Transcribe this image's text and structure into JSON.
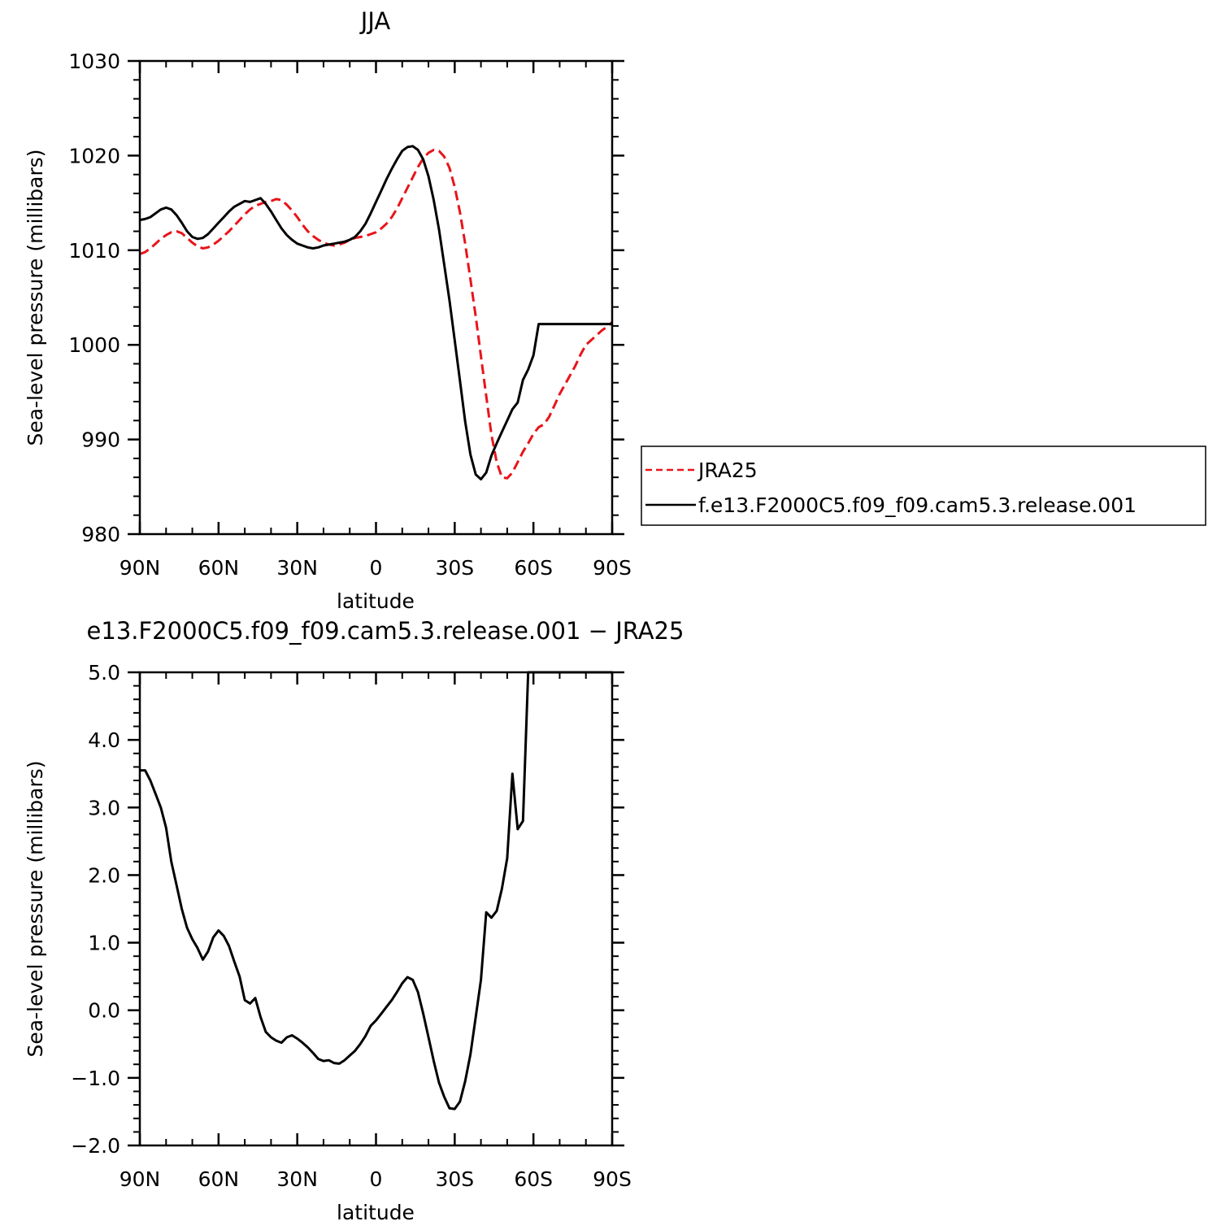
{
  "colors": {
    "jra": "#e8141a",
    "model": "#000000",
    "frame": "#000000"
  },
  "chart_data": [
    {
      "type": "line",
      "title": "JJA",
      "xlabel": "latitude",
      "ylabel": "Sea-level pressure (millibars)",
      "xlim": [
        90,
        -90
      ],
      "ylim": [
        980,
        1030
      ],
      "xticks": [
        90,
        60,
        30,
        0,
        -30,
        -60,
        -90
      ],
      "xtick_labels": [
        "90N",
        "60N",
        "30N",
        "0",
        "30S",
        "60S",
        "90S"
      ],
      "yticks": [
        980,
        990,
        1000,
        1010,
        1020,
        1030
      ],
      "ytick_labels": [
        "980",
        "990",
        "1000",
        "1010",
        "1020",
        "1030"
      ],
      "grid": false,
      "legend_position": "right",
      "legend": {
        "entries": [
          "JRA25",
          "f.e13.F2000C5.f09_f09.cam5.3.release.001"
        ]
      },
      "series": [
        {
          "name": "JRA25",
          "style": "dashed",
          "color": "#e8141a",
          "x": [
            90,
            88,
            86,
            84,
            82,
            80,
            78,
            76,
            74,
            72,
            70,
            68,
            66,
            64,
            62,
            60,
            58,
            56,
            54,
            52,
            50,
            48,
            46,
            44,
            42,
            40,
            38,
            36,
            34,
            32,
            30,
            28,
            26,
            24,
            22,
            20,
            18,
            16,
            14,
            12,
            10,
            8,
            6,
            4,
            2,
            0,
            -2,
            -4,
            -6,
            -8,
            -10,
            -12,
            -14,
            -16,
            -18,
            -20,
            -22,
            -24,
            -26,
            -28,
            -30,
            -32,
            -34,
            -36,
            -38,
            -40,
            -42,
            -44,
            -46,
            -48,
            -50,
            -52,
            -54,
            -56,
            -58,
            -60,
            -62,
            -64,
            -66,
            -68,
            -70,
            -72,
            -74,
            -76,
            -78,
            -80,
            -82,
            -84,
            -86,
            -88,
            -90
          ],
          "y": [
            1009.6,
            1009.8,
            1010.2,
            1010.7,
            1011.2,
            1011.6,
            1011.9,
            1012.0,
            1011.8,
            1011.3,
            1010.8,
            1010.4,
            1010.2,
            1010.3,
            1010.6,
            1011.0,
            1011.5,
            1012.0,
            1012.6,
            1013.2,
            1013.8,
            1014.3,
            1014.7,
            1014.9,
            1015.1,
            1015.2,
            1015.4,
            1015.3,
            1014.8,
            1014.2,
            1013.5,
            1012.7,
            1012.0,
            1011.5,
            1011.1,
            1010.8,
            1010.6,
            1010.5,
            1010.6,
            1010.8,
            1011.1,
            1011.3,
            1011.4,
            1011.5,
            1011.7,
            1011.9,
            1012.3,
            1012.8,
            1013.5,
            1014.4,
            1015.5,
            1016.6,
            1017.7,
            1018.8,
            1019.7,
            1020.3,
            1020.6,
            1020.5,
            1019.9,
            1018.7,
            1016.7,
            1014.0,
            1010.7,
            1006.9,
            1003.0,
            998.8,
            994.6,
            990.5,
            987.6,
            986.0,
            985.9,
            986.5,
            987.6,
            988.7,
            989.6,
            990.6,
            991.3,
            991.6,
            992.4,
            993.6,
            994.8,
            995.8,
            996.8,
            997.8,
            999.0,
            1000.0,
            1000.5,
            1001.0,
            1001.5,
            1001.9,
            1002.4
          ]
        },
        {
          "name": "f.e13.F2000C5.f09_f09.cam5.3.release.001",
          "style": "solid",
          "color": "#000000",
          "x": [
            90,
            88,
            86,
            84,
            82,
            80,
            78,
            76,
            74,
            72,
            70,
            68,
            66,
            64,
            62,
            60,
            58,
            56,
            54,
            52,
            50,
            48,
            46,
            44,
            42,
            40,
            38,
            36,
            34,
            32,
            30,
            28,
            26,
            24,
            22,
            20,
            18,
            16,
            14,
            12,
            10,
            8,
            6,
            4,
            2,
            0,
            -2,
            -4,
            -6,
            -8,
            -10,
            -12,
            -14,
            -16,
            -18,
            -20,
            -22,
            -24,
            -26,
            -28,
            -30,
            -32,
            -34,
            -36,
            -38,
            -40,
            -42,
            -44,
            -46,
            -48,
            -50,
            -52,
            -54,
            -56,
            -58,
            -60,
            -62,
            -64,
            -66,
            -68,
            -70,
            -72,
            -74,
            -76,
            -78,
            -80,
            -82,
            -84,
            -86,
            -88,
            -90
          ],
          "y": [
            1013.2,
            1013.3,
            1013.5,
            1013.9,
            1014.3,
            1014.5,
            1014.3,
            1013.7,
            1012.9,
            1012.0,
            1011.4,
            1011.2,
            1011.3,
            1011.7,
            1012.3,
            1012.9,
            1013.5,
            1014.1,
            1014.6,
            1014.9,
            1015.2,
            1015.1,
            1015.3,
            1015.5,
            1014.9,
            1014.1,
            1013.2,
            1012.3,
            1011.6,
            1011.1,
            1010.7,
            1010.5,
            1010.3,
            1010.2,
            1010.3,
            1010.5,
            1010.6,
            1010.7,
            1010.8,
            1010.9,
            1011.1,
            1011.4,
            1012.0,
            1012.8,
            1013.9,
            1015.1,
            1016.3,
            1017.5,
            1018.6,
            1019.6,
            1020.5,
            1020.9,
            1021.0,
            1020.6,
            1019.6,
            1017.8,
            1015.3,
            1012.2,
            1008.5,
            1004.7,
            1000.5,
            996.2,
            991.9,
            988.4,
            986.3,
            985.8,
            986.5,
            988.3,
            989.6,
            990.8,
            992.0,
            993.2,
            993.9,
            996.3,
            997.4,
            998.9,
            1002.2,
            1002.2,
            1002.2,
            1002.2,
            1002.2,
            1002.2,
            1002.2,
            1002.2,
            1002.2,
            1002.2,
            1002.2,
            1002.2,
            1002.2,
            1002.2,
            1002.2
          ]
        }
      ]
    },
    {
      "type": "line",
      "title": "e13.F2000C5.f09_f09.cam5.3.release.001 − JRA25",
      "xlabel": "latitude",
      "ylabel": "Sea-level pressure (millibars)",
      "xlim": [
        90,
        -90
      ],
      "ylim": [
        -2.0,
        5.0
      ],
      "xticks": [
        90,
        60,
        30,
        0,
        -30,
        -60,
        -90
      ],
      "xtick_labels": [
        "90N",
        "60N",
        "30N",
        "0",
        "30S",
        "60S",
        "90S"
      ],
      "yticks": [
        -2,
        -1,
        0,
        1,
        2,
        3,
        4,
        5
      ],
      "ytick_labels": [
        "−2.0",
        "−1.0",
        "0.0",
        "1.0",
        "2.0",
        "3.0",
        "4.0",
        "5.0"
      ],
      "grid": false,
      "series": [
        {
          "style": "solid",
          "color": "#000000",
          "x": [
            90,
            88,
            86,
            84,
            82,
            80,
            78,
            76,
            74,
            72,
            70,
            68,
            66,
            64,
            62,
            60,
            58,
            56,
            54,
            52,
            50,
            48,
            46,
            44,
            42,
            40,
            38,
            36,
            34,
            32,
            30,
            28,
            26,
            24,
            22,
            20,
            18,
            16,
            14,
            12,
            10,
            8,
            6,
            4,
            2,
            0,
            -2,
            -4,
            -6,
            -8,
            -10,
            -12,
            -14,
            -16,
            -18,
            -20,
            -22,
            -24,
            -26,
            -28,
            -30,
            -32,
            -34,
            -36,
            -38,
            -40,
            -42,
            -44,
            -46,
            -48,
            -50,
            -52,
            -54,
            -56,
            -58,
            -60,
            -62,
            -64,
            -66,
            -68,
            -70,
            -72,
            -74,
            -76,
            -78,
            -80,
            -82,
            -84,
            -86,
            -88,
            -90
          ],
          "y": [
            3.55,
            3.55,
            3.4,
            3.2,
            3.0,
            2.7,
            2.2,
            1.85,
            1.5,
            1.22,
            1.05,
            0.92,
            0.75,
            0.87,
            1.08,
            1.18,
            1.1,
            0.95,
            0.72,
            0.5,
            0.15,
            0.1,
            0.18,
            -0.1,
            -0.32,
            -0.4,
            -0.45,
            -0.48,
            -0.4,
            -0.37,
            -0.42,
            -0.48,
            -0.55,
            -0.63,
            -0.72,
            -0.75,
            -0.74,
            -0.78,
            -0.79,
            -0.74,
            -0.67,
            -0.6,
            -0.5,
            -0.38,
            -0.23,
            -0.15,
            -0.05,
            0.05,
            0.15,
            0.27,
            0.4,
            0.49,
            0.45,
            0.27,
            -0.05,
            -0.4,
            -0.75,
            -1.07,
            -1.28,
            -1.45,
            -1.46,
            -1.35,
            -1.05,
            -0.65,
            -0.1,
            0.45,
            1.45,
            1.37,
            1.47,
            1.8,
            2.25,
            3.5,
            2.68,
            2.8,
            5.0,
            5.0,
            5.0,
            5.0,
            5.0,
            5.0,
            5.0,
            5.0,
            5.0,
            5.0,
            5.0,
            5.0,
            5.0,
            5.0,
            5.0,
            5.0,
            5.0
          ]
        }
      ]
    }
  ]
}
